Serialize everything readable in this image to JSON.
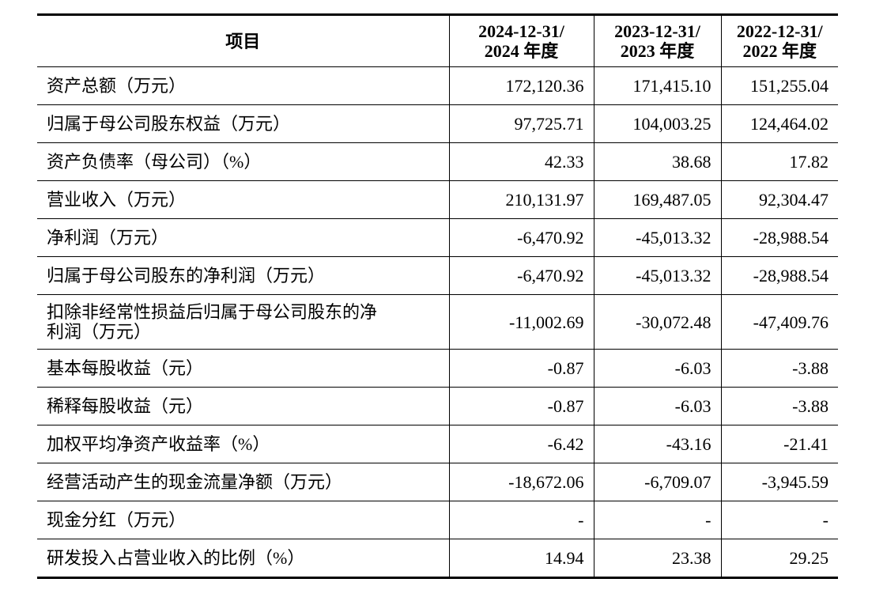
{
  "table": {
    "header": [
      "项目",
      "2024-12-31/\n2024 年度",
      "2023-12-31/\n2023 年度",
      "2022-12-31/\n2022 年度"
    ],
    "rows": [
      [
        "资产总额（万元）",
        "172,120.36",
        "171,415.10",
        "151,255.04"
      ],
      [
        "归属于母公司股东权益（万元）",
        "97,725.71",
        "104,003.25",
        "124,464.02"
      ],
      [
        "资产负债率（母公司）（%）",
        "42.33",
        "38.68",
        "17.82"
      ],
      [
        "营业收入（万元）",
        "210,131.97",
        "169,487.05",
        "92,304.47"
      ],
      [
        "净利润（万元）",
        "-6,470.92",
        "-45,013.32",
        "-28,988.54"
      ],
      [
        "归属于母公司股东的净利润（万元）",
        "-6,470.92",
        "-45,013.32",
        "-28,988.54"
      ],
      [
        "扣除非经常性损益后归属于母公司股东的净\n利润（万元）",
        "-11,002.69",
        "-30,072.48",
        "-47,409.76"
      ],
      [
        "基本每股收益（元）",
        "-0.87",
        "-6.03",
        "-3.88"
      ],
      [
        "稀释每股收益（元）",
        "-0.87",
        "-6.03",
        "-3.88"
      ],
      [
        "加权平均净资产收益率（%）",
        "-6.42",
        "-43.16",
        "-21.41"
      ],
      [
        "经营活动产生的现金流量净额（万元）",
        "-18,672.06",
        "-6,709.07",
        "-3,945.59"
      ],
      [
        "现金分红（万元）",
        "-",
        "-",
        "-"
      ],
      [
        "研发投入占营业收入的比例（%）",
        "14.94",
        "23.38",
        "29.25"
      ]
    ]
  }
}
